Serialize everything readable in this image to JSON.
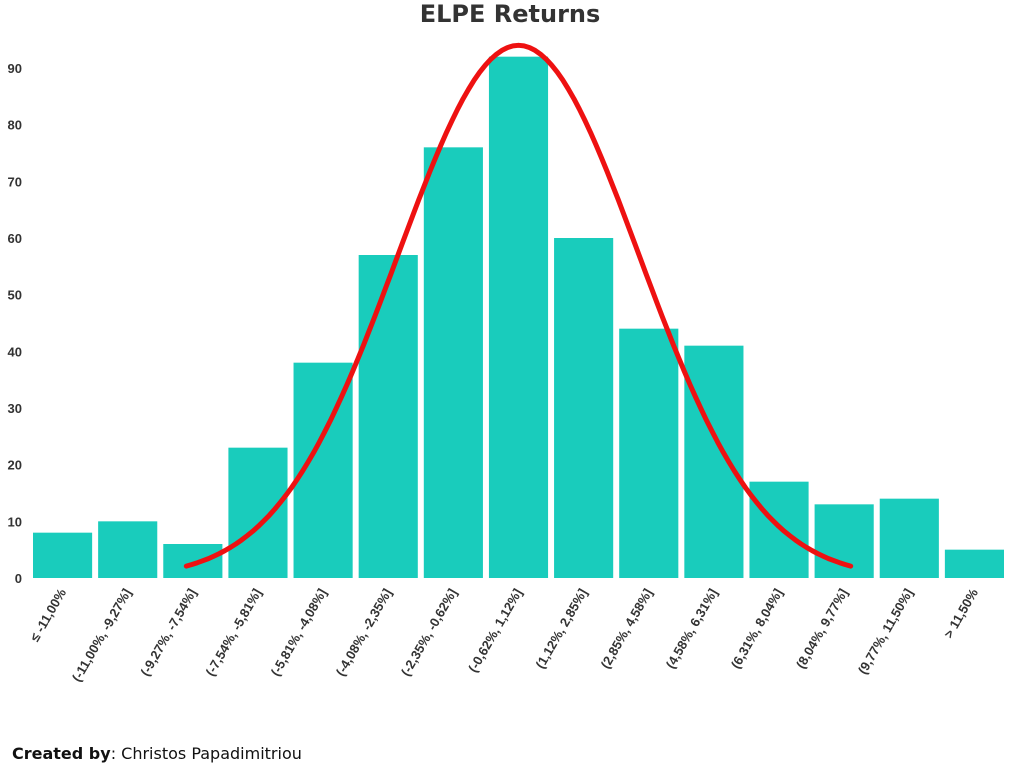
{
  "chart_data": {
    "type": "bar",
    "title": "ELPE Returns",
    "xlabel": "",
    "ylabel": "",
    "ylim": [
      0,
      90
    ],
    "yticks": [
      0,
      10,
      20,
      30,
      40,
      50,
      60,
      70,
      80,
      90
    ],
    "grid": false,
    "legend": "none",
    "categories": [
      "≤ -11,00%",
      "(-11,00%, -9,27%]",
      "(-9,27%, -7,54%]",
      "(-7,54%, -5,81%]",
      "(-5,81%, -4,08%]",
      "(-4,08%, -2,35%]",
      "(-2,35%, -0,62%]",
      "(-0,62%, 1,12%]",
      "(1,12%, 2,85%]",
      "(2,85%, 4,58%]",
      "(4,58%, 6,31%]",
      "(6,31%, 8,04%]",
      "(8,04%, 9,77%]",
      "(9,77%, 11,50%]",
      "> 11,50%"
    ],
    "values": [
      8,
      10,
      6,
      23,
      38,
      57,
      76,
      92,
      60,
      44,
      41,
      17,
      13,
      14,
      5
    ],
    "overlay": {
      "type": "normal-curve",
      "peak_value": 94,
      "peak_category_index": 7,
      "from_category_index": 2,
      "to_category_index": 12
    },
    "colors": {
      "bar": "#19ccbc",
      "curve": "#ee1111",
      "text": "#333333"
    }
  },
  "footer": {
    "credit_label": "Created by",
    "credit_name": ": Christos Papadimitriou"
  }
}
